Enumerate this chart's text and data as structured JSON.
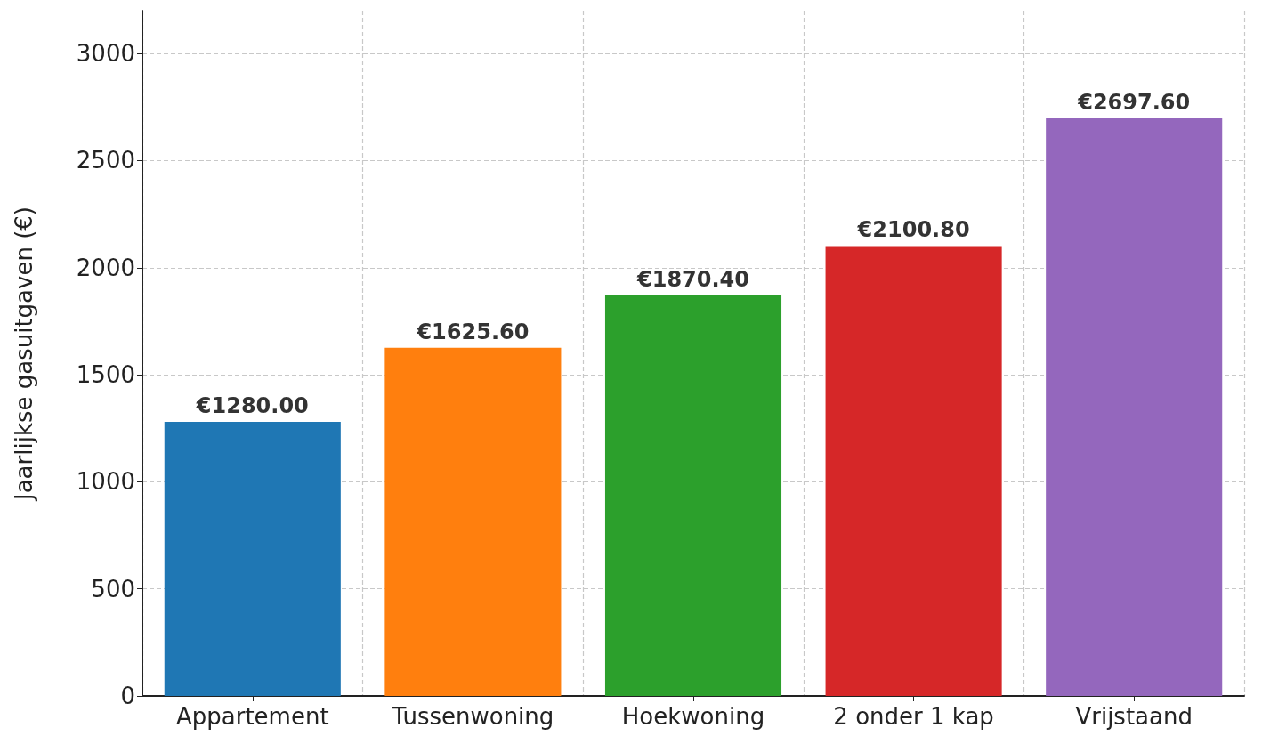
{
  "chart_data": {
    "type": "bar",
    "ylabel": "Jaarlijkse gasuitgaven (€)",
    "categories": [
      "Appartement",
      "Tussenwoning",
      "Hoekwoning",
      "2 onder 1 kap",
      "Vrijstaand"
    ],
    "values": [
      1280.0,
      1625.6,
      1870.4,
      2100.8,
      2697.6
    ],
    "colors": [
      "#1f77b4",
      "#ff7f0e",
      "#2ca02c",
      "#d62728",
      "#9467bd"
    ],
    "value_labels": [
      "€1280.00",
      "€1625.60",
      "€1870.40",
      "€2100.80",
      "€2697.60"
    ],
    "ylim": [
      0,
      3200
    ],
    "yticks": [
      0,
      500,
      1000,
      1500,
      2000,
      2500,
      3000
    ],
    "grid": true
  }
}
